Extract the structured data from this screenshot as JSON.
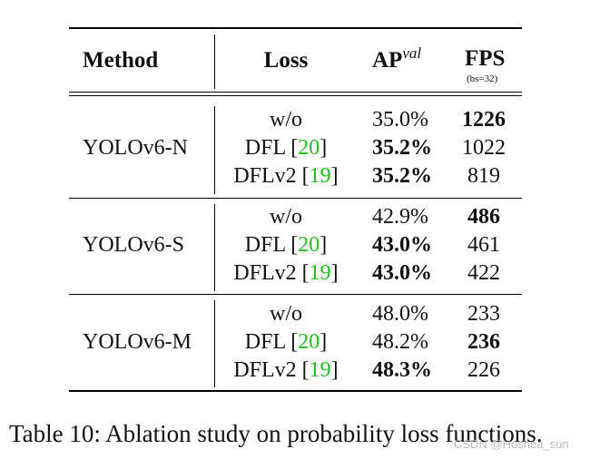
{
  "table": {
    "headers": {
      "method": "Method",
      "loss": "Loss",
      "ap": "AP",
      "ap_sup": "val",
      "fps": "FPS",
      "fps_note": "(bs=32)"
    },
    "groups": [
      {
        "method": "YOLOv6-N",
        "rows": [
          {
            "loss": "w/o",
            "ref": "",
            "ap": "35.0%",
            "ap_bold": false,
            "fps": "1226",
            "fps_bold": true
          },
          {
            "loss": "DFL",
            "ref": "20",
            "ap": "35.2%",
            "ap_bold": true,
            "fps": "1022",
            "fps_bold": false
          },
          {
            "loss": "DFLv2",
            "ref": "19",
            "ap": "35.2%",
            "ap_bold": true,
            "fps": "819",
            "fps_bold": false
          }
        ]
      },
      {
        "method": "YOLOv6-S",
        "rows": [
          {
            "loss": "w/o",
            "ref": "",
            "ap": "42.9%",
            "ap_bold": false,
            "fps": "486",
            "fps_bold": true
          },
          {
            "loss": "DFL",
            "ref": "20",
            "ap": "43.0%",
            "ap_bold": true,
            "fps": "461",
            "fps_bold": false
          },
          {
            "loss": "DFLv2",
            "ref": "19",
            "ap": "43.0%",
            "ap_bold": true,
            "fps": "422",
            "fps_bold": false
          }
        ]
      },
      {
        "method": "YOLOv6-M",
        "rows": [
          {
            "loss": "w/o",
            "ref": "",
            "ap": "48.0%",
            "ap_bold": false,
            "fps": "233",
            "fps_bold": false
          },
          {
            "loss": "DFL",
            "ref": "20",
            "ap": "48.2%",
            "ap_bold": false,
            "fps": "236",
            "fps_bold": true
          },
          {
            "loss": "DFLv2",
            "ref": "19",
            "ap": "48.3%",
            "ap_bold": true,
            "fps": "226",
            "fps_bold": false
          }
        ]
      }
    ]
  },
  "caption": "Table 10: Ablation study on probability loss functions.",
  "watermark": "CSDN @Hoshea_sun",
  "colors": {
    "reference": "#22bb22",
    "rule": "#000000",
    "watermark": "#bbbbbb"
  }
}
